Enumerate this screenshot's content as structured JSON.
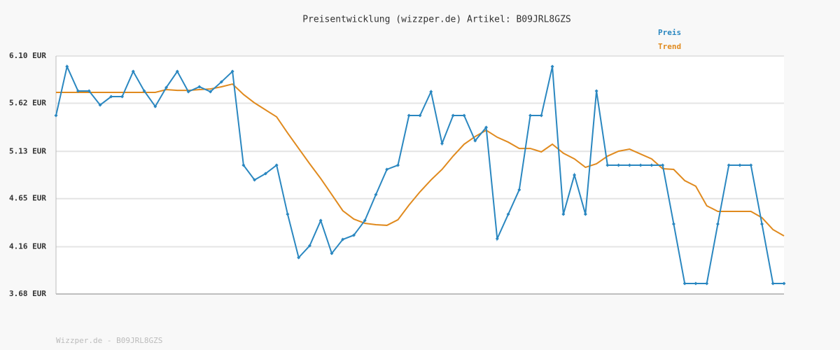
{
  "chart_data": {
    "type": "line",
    "title": "Preisentwicklung (wizzper.de) Artikel: B09JRL8GZS",
    "footer": "Wizzper.de - B09JRL8GZS",
    "ylim": [
      3.68,
      6.1
    ],
    "yticks": [
      {
        "value": 6.1,
        "label": "6.10 EUR"
      },
      {
        "value": 5.62,
        "label": "5.62 EUR"
      },
      {
        "value": 5.13,
        "label": "5.13 EUR"
      },
      {
        "value": 4.65,
        "label": "4.65 EUR"
      },
      {
        "value": 4.16,
        "label": "4.16 EUR"
      },
      {
        "value": 3.68,
        "label": "3.68 EUR"
      }
    ],
    "grid": true,
    "legend": "top-right",
    "series": [
      {
        "name": "Preis",
        "color": "#2a87c0",
        "markers": true,
        "values": [
          5.495,
          5.993,
          5.744,
          5.744,
          5.602,
          5.687,
          5.687,
          5.943,
          5.744,
          5.587,
          5.78,
          5.943,
          5.737,
          5.787,
          5.737,
          5.837,
          5.943,
          4.99,
          4.84,
          4.904,
          4.99,
          4.491,
          4.05,
          4.171,
          4.427,
          4.093,
          4.235,
          4.278,
          4.427,
          4.691,
          4.947,
          4.99,
          5.495,
          5.495,
          5.737,
          5.21,
          5.495,
          5.495,
          5.239,
          5.374,
          4.242,
          4.491,
          4.74,
          5.495,
          5.495,
          5.993,
          4.491,
          4.89,
          4.491,
          5.744,
          4.99,
          4.99,
          4.99,
          4.99,
          4.99,
          4.99,
          4.392,
          3.787,
          3.787,
          3.787,
          4.392,
          4.99,
          4.99,
          4.99,
          4.392,
          3.787,
          3.787
        ]
      },
      {
        "name": "Trend",
        "color": "#e08a1e",
        "markers": false,
        "values": [
          5.73,
          5.73,
          5.73,
          5.73,
          5.73,
          5.73,
          5.73,
          5.73,
          5.73,
          5.73,
          5.758,
          5.75,
          5.75,
          5.758,
          5.765,
          5.787,
          5.815,
          5.709,
          5.623,
          5.552,
          5.481,
          5.317,
          5.16,
          5.004,
          4.854,
          4.691,
          4.527,
          4.442,
          4.399,
          4.385,
          4.378,
          4.435,
          4.584,
          4.719,
          4.84,
          4.947,
          5.082,
          5.203,
          5.281,
          5.345,
          5.274,
          5.224,
          5.16,
          5.16,
          5.125,
          5.203,
          5.111,
          5.054,
          4.968,
          5.004,
          5.082,
          5.132,
          5.153,
          5.103,
          5.054,
          4.954,
          4.947,
          4.833,
          4.776,
          4.577,
          4.52,
          4.52,
          4.52,
          4.52,
          4.456,
          4.335,
          4.271
        ]
      }
    ]
  }
}
